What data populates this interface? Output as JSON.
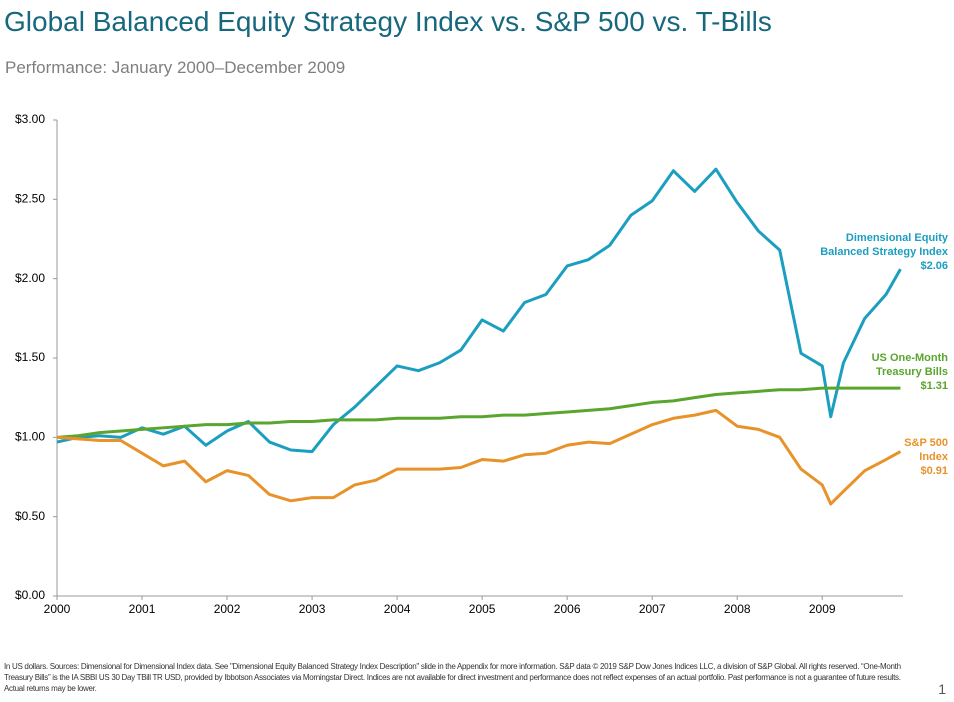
{
  "chart_data": {
    "type": "line",
    "title": "Global Balanced Equity Strategy Index vs. S&P 500 vs. T-Bills",
    "subtitle": "Performance: January 2000–December 2009",
    "x": [
      2000,
      2000.25,
      2000.5,
      2000.75,
      2001,
      2001.25,
      2001.5,
      2001.75,
      2002,
      2002.25,
      2002.5,
      2002.75,
      2003,
      2003.25,
      2003.5,
      2003.75,
      2004,
      2004.25,
      2004.5,
      2004.75,
      2005,
      2005.25,
      2005.5,
      2005.75,
      2006,
      2006.25,
      2006.5,
      2006.75,
      2007,
      2007.25,
      2007.5,
      2007.75,
      2008,
      2008.25,
      2008.5,
      2008.75,
      2009,
      2009.1,
      2009.25,
      2009.5,
      2009.75,
      2009.92
    ],
    "xlim": [
      2000,
      2009.95
    ],
    "xticks": [
      2000,
      2001,
      2002,
      2003,
      2004,
      2005,
      2006,
      2007,
      2008,
      2009
    ],
    "ylim": [
      0,
      3
    ],
    "yticks": [
      {
        "value": 0,
        "label": "$0.00"
      },
      {
        "value": 0.5,
        "label": "$0.50"
      },
      {
        "value": 1,
        "label": "$1.00"
      },
      {
        "value": 1.5,
        "label": "$1.50"
      },
      {
        "value": 2,
        "label": "$2.00"
      },
      {
        "value": 2.5,
        "label": "$2.50"
      },
      {
        "value": 3,
        "label": "$3.00"
      }
    ],
    "grid": false,
    "series": [
      {
        "name": "Dimensional Equity Balanced Strategy Index",
        "color": "#1b9ec0",
        "values": [
          0.97,
          1.0,
          1.01,
          1.0,
          1.06,
          1.02,
          1.07,
          0.95,
          1.04,
          1.1,
          0.97,
          0.92,
          0.91,
          1.08,
          1.19,
          1.32,
          1.45,
          1.42,
          1.47,
          1.55,
          1.74,
          1.67,
          1.85,
          1.9,
          2.08,
          2.12,
          2.21,
          2.4,
          2.49,
          2.68,
          2.55,
          2.69,
          2.48,
          2.3,
          2.18,
          1.53,
          1.45,
          1.13,
          1.47,
          1.75,
          1.9,
          2.06
        ],
        "value_labels": [
          null,
          null,
          null,
          null,
          null,
          null,
          null,
          null,
          null,
          null,
          null,
          null,
          null,
          null,
          null,
          null,
          null,
          null,
          null,
          null,
          null,
          null,
          null,
          null,
          null,
          null,
          null,
          null,
          null,
          null,
          null,
          null,
          null,
          null,
          null,
          null,
          null,
          null,
          null,
          null,
          null,
          "$2.06"
        ]
      },
      {
        "name": "US One-Month Treasury Bills",
        "color": "#5aa52e",
        "values": [
          1.0,
          1.01,
          1.03,
          1.04,
          1.05,
          1.06,
          1.07,
          1.08,
          1.08,
          1.09,
          1.09,
          1.1,
          1.1,
          1.11,
          1.11,
          1.11,
          1.12,
          1.12,
          1.12,
          1.13,
          1.13,
          1.14,
          1.14,
          1.15,
          1.16,
          1.17,
          1.18,
          1.2,
          1.22,
          1.23,
          1.25,
          1.27,
          1.28,
          1.29,
          1.3,
          1.3,
          1.31,
          1.31,
          1.31,
          1.31,
          1.31,
          1.31
        ],
        "value_labels": [
          null,
          null,
          null,
          null,
          null,
          null,
          null,
          null,
          null,
          null,
          null,
          null,
          null,
          null,
          null,
          null,
          null,
          null,
          null,
          null,
          null,
          null,
          null,
          null,
          null,
          null,
          null,
          null,
          null,
          null,
          null,
          null,
          null,
          null,
          null,
          null,
          null,
          null,
          null,
          null,
          null,
          "$1.31"
        ]
      },
      {
        "name": "S&P 500 Index",
        "color": "#e8922a",
        "values": [
          1.0,
          0.99,
          0.98,
          0.98,
          0.9,
          0.82,
          0.85,
          0.72,
          0.79,
          0.76,
          0.64,
          0.6,
          0.62,
          0.62,
          0.7,
          0.73,
          0.8,
          0.8,
          0.8,
          0.81,
          0.86,
          0.85,
          0.89,
          0.9,
          0.95,
          0.97,
          0.96,
          1.02,
          1.08,
          1.12,
          1.14,
          1.17,
          1.07,
          1.05,
          1.0,
          0.8,
          0.7,
          0.58,
          0.66,
          0.79,
          0.86,
          0.91
        ],
        "value_labels": [
          null,
          null,
          null,
          null,
          null,
          null,
          null,
          null,
          null,
          null,
          null,
          null,
          null,
          null,
          null,
          null,
          null,
          null,
          null,
          null,
          null,
          null,
          null,
          null,
          null,
          null,
          null,
          null,
          null,
          null,
          null,
          null,
          null,
          null,
          null,
          null,
          null,
          null,
          null,
          null,
          null,
          "$0.91"
        ]
      }
    ],
    "footnote": "In US dollars. Sources: Dimensional for Dimensional Index data. See \"Dimensional Equity Balanced Strategy Index Description\" slide in the Appendix for more information. S&P data © 2019 S&P Dow Jones Indices LLC, a division of S&P Global. All rights reserved. “One-Month Treasury Bills” is the IA SBBI US 30 Day TBill TR USD, provided by Ibbotson Associates via Morningstar Direct. Indices are not available for direct investment and performance does not reflect expenses of an actual portfolio. Past performance is not a guarantee of future results. Actual returns may be lower.",
    "page_number": "1"
  }
}
